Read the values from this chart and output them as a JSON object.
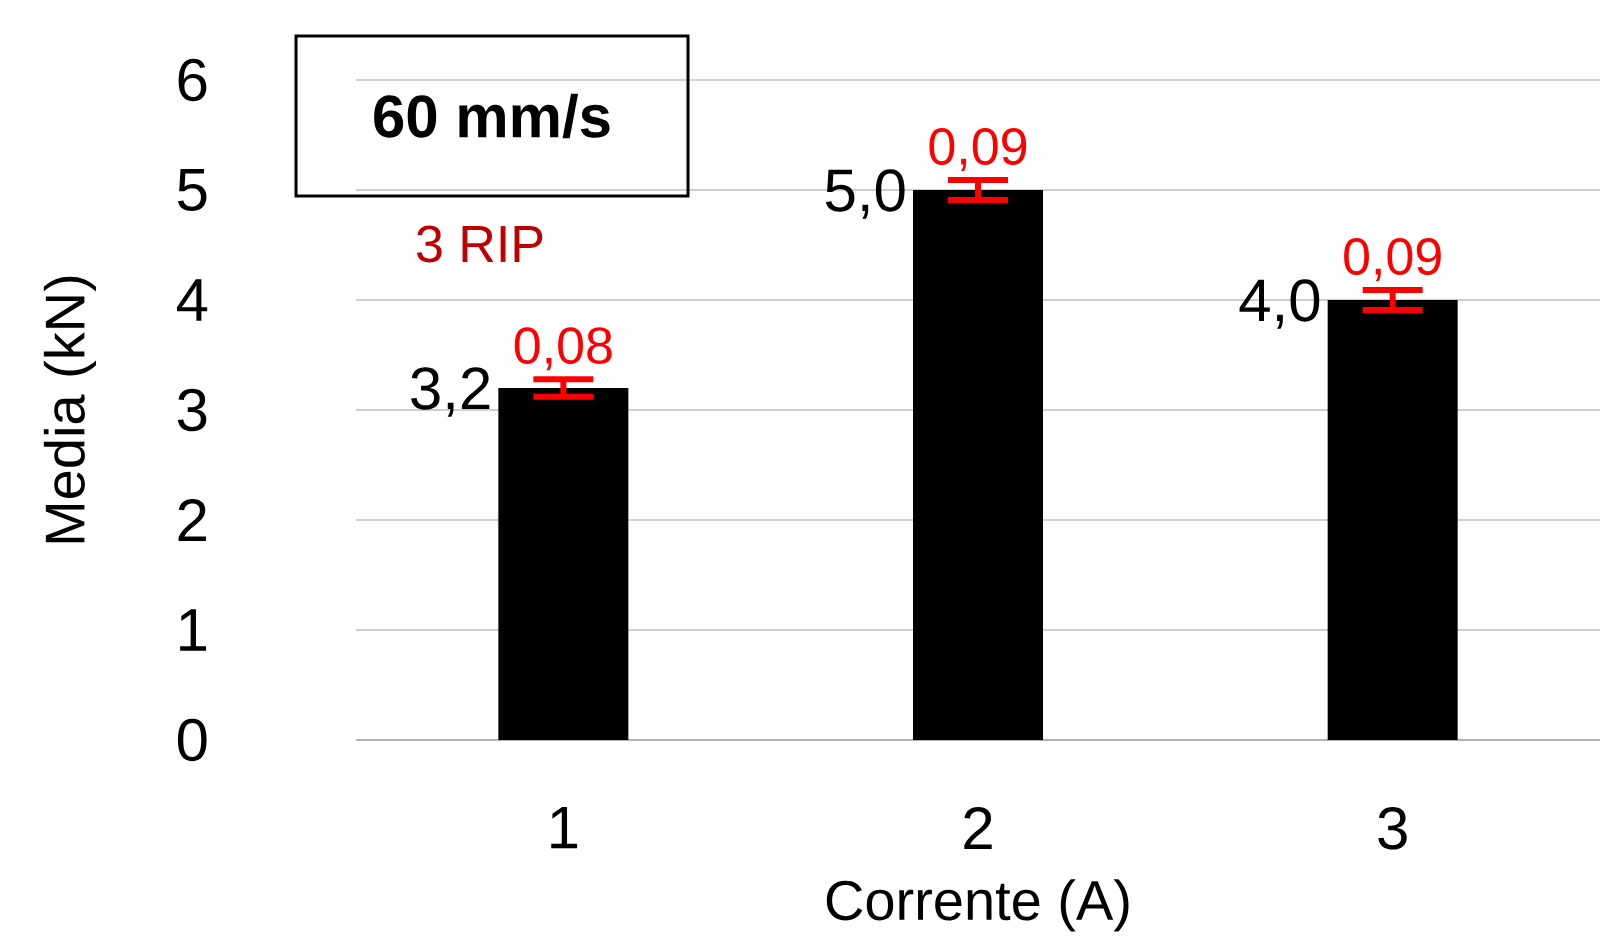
{
  "chart_data": {
    "type": "bar",
    "title": "60 mm/s",
    "xlabel": "Corrente (A)",
    "ylabel": "Media (kN)",
    "categories": [
      "1",
      "2",
      "3"
    ],
    "values": [
      3.2,
      5.0,
      4.0
    ],
    "color": "#000000",
    "errors": [
      0.08,
      0.09,
      0.09
    ],
    "value_labels": [
      "3,2",
      "5,0",
      "4,0"
    ],
    "ylim": [
      0,
      6
    ],
    "yticks": [
      0,
      1,
      2,
      3,
      4,
      5,
      6
    ],
    "grid": "y",
    "annotations": [
      "3 RIP",
      {
        "text": "0,08",
        "x": "1",
        "y": 3.28
      },
      {
        "text": "0,09",
        "x": "2",
        "y": 5.09
      },
      {
        "text": "0,09",
        "x": "3",
        "y": 4.09
      }
    ]
  }
}
